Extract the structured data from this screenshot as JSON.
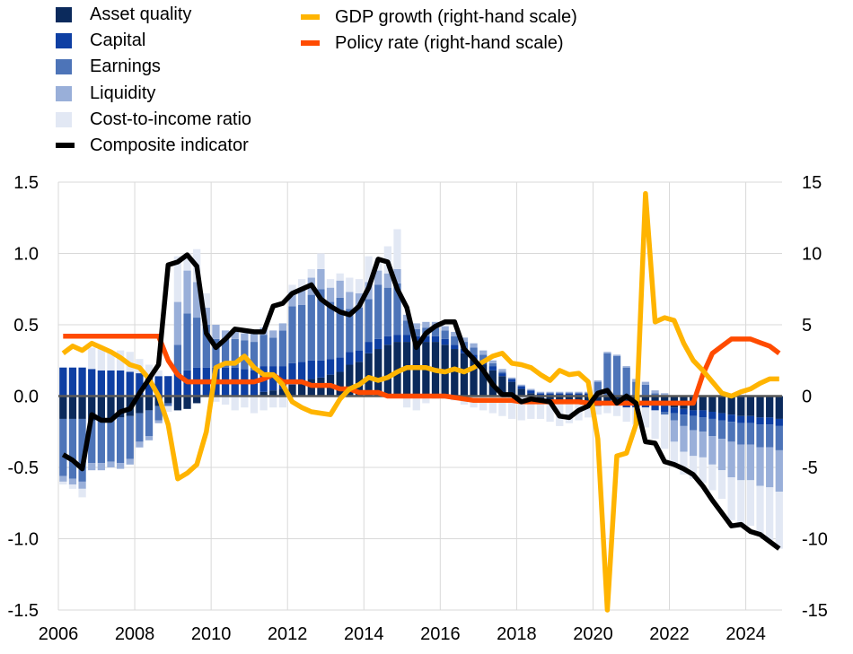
{
  "chart_data": {
    "type": "bar",
    "title": "",
    "x_ticks": [
      "2006",
      "2008",
      "2010",
      "2012",
      "2014",
      "2016",
      "2018",
      "2020",
      "2022",
      "2024"
    ],
    "left_axis": {
      "ylim": [
        -1.5,
        1.5
      ],
      "ticks": [
        "-1.5",
        "-1.0",
        "-0.5",
        "0.0",
        "0.5",
        "1.0",
        "1.5"
      ]
    },
    "right_axis": {
      "ylim": [
        -15,
        15
      ],
      "ticks": [
        "-15",
        "-10",
        "-5",
        "0",
        "5",
        "10",
        "15"
      ]
    },
    "grid": true,
    "legend_position": "top-left",
    "x": [
      2006.0,
      2006.25,
      2006.5,
      2006.75,
      2007.0,
      2007.25,
      2007.5,
      2007.75,
      2008.0,
      2008.25,
      2008.5,
      2008.75,
      2009.0,
      2009.25,
      2009.5,
      2009.75,
      2010.0,
      2010.25,
      2010.5,
      2010.75,
      2011.0,
      2011.25,
      2011.5,
      2011.75,
      2012.0,
      2012.25,
      2012.5,
      2012.75,
      2013.0,
      2013.25,
      2013.5,
      2013.75,
      2014.0,
      2014.25,
      2014.5,
      2014.75,
      2015.0,
      2015.25,
      2015.5,
      2015.75,
      2016.0,
      2016.25,
      2016.5,
      2016.75,
      2017.0,
      2017.25,
      2017.5,
      2017.75,
      2018.0,
      2018.25,
      2018.5,
      2018.75,
      2019.0,
      2019.25,
      2019.5,
      2019.75,
      2020.0,
      2020.25,
      2020.5,
      2020.75,
      2021.0,
      2021.25,
      2021.5,
      2021.75,
      2022.0,
      2022.25,
      2022.5,
      2022.75,
      2023.0,
      2023.25,
      2023.5,
      2023.75,
      2024.0,
      2024.25,
      2024.5,
      2024.75
    ],
    "stack_order": [
      "Asset quality",
      "Capital",
      "Earnings",
      "Liquidity",
      "Cost-to-income ratio"
    ],
    "series": [
      {
        "name": "Asset quality",
        "color": "#0b2a5c",
        "kind": "bar",
        "values": [
          -0.16,
          -0.16,
          -0.16,
          -0.17,
          -0.17,
          -0.16,
          -0.15,
          -0.14,
          -0.12,
          -0.1,
          -0.07,
          -0.05,
          -0.1,
          -0.09,
          -0.05,
          0.0,
          0.0,
          0.0,
          0.0,
          0.0,
          0.0,
          0.03,
          0.04,
          0.05,
          0.08,
          0.1,
          0.12,
          0.13,
          0.15,
          0.17,
          0.22,
          0.24,
          0.3,
          0.33,
          0.36,
          0.38,
          0.38,
          0.38,
          0.38,
          0.38,
          0.36,
          0.33,
          0.3,
          0.26,
          0.22,
          0.18,
          0.14,
          0.1,
          0.05,
          0.02,
          -0.02,
          -0.04,
          -0.05,
          -0.05,
          -0.05,
          -0.05,
          -0.05,
          -0.04,
          -0.04,
          -0.05,
          -0.05,
          -0.05,
          -0.06,
          -0.07,
          -0.08,
          -0.09,
          -0.1,
          -0.1,
          -0.11,
          -0.12,
          -0.13,
          -0.14,
          -0.14,
          -0.15,
          -0.15,
          -0.16
        ]
      },
      {
        "name": "Capital",
        "color": "#0e3fa3",
        "kind": "bar",
        "values": [
          0.2,
          0.2,
          0.2,
          0.19,
          0.18,
          0.18,
          0.18,
          0.17,
          0.16,
          0.15,
          0.14,
          0.14,
          0.16,
          0.18,
          0.2,
          0.2,
          0.2,
          0.2,
          0.2,
          0.19,
          0.18,
          0.18,
          0.17,
          0.16,
          0.15,
          0.14,
          0.13,
          0.12,
          0.11,
          0.1,
          0.09,
          0.08,
          0.08,
          0.07,
          0.06,
          0.05,
          0.05,
          0.04,
          0.04,
          0.04,
          0.04,
          0.03,
          0.03,
          0.03,
          0.03,
          0.03,
          0.02,
          0.02,
          0.02,
          0.02,
          0.02,
          0.02,
          0.02,
          0.02,
          0.02,
          0.02,
          -0.02,
          -0.02,
          -0.02,
          -0.03,
          -0.03,
          -0.03,
          -0.04,
          -0.04,
          -0.04,
          -0.04,
          -0.04,
          -0.05,
          -0.05,
          -0.05,
          -0.05,
          -0.05,
          -0.05,
          -0.05,
          -0.05,
          -0.05
        ]
      },
      {
        "name": "Earnings",
        "color": "#4d74b8",
        "kind": "bar",
        "values": [
          -0.4,
          -0.42,
          -0.44,
          -0.3,
          -0.3,
          -0.3,
          -0.32,
          -0.3,
          -0.2,
          -0.18,
          -0.1,
          -0.02,
          0.2,
          0.4,
          0.35,
          0.3,
          0.2,
          0.2,
          0.2,
          0.2,
          0.2,
          0.22,
          0.2,
          0.25,
          0.4,
          0.4,
          0.46,
          0.5,
          0.4,
          0.42,
          0.3,
          0.3,
          0.3,
          0.38,
          0.34,
          0.36,
          0.1,
          0.05,
          0.06,
          0.06,
          0.06,
          0.06,
          0.05,
          0.05,
          0.04,
          0.02,
          0.01,
          0.0,
          0.0,
          0.0,
          0.0,
          0.0,
          0.0,
          0.0,
          0.0,
          0.0,
          0.1,
          0.3,
          0.28,
          0.2,
          0.1,
          0.08,
          0.02,
          -0.02,
          -0.05,
          -0.08,
          -0.1,
          -0.1,
          -0.12,
          -0.13,
          -0.14,
          -0.15,
          -0.15,
          -0.16,
          -0.16,
          -0.17
        ]
      },
      {
        "name": "Liquidity",
        "color": "#99afd9",
        "kind": "bar",
        "values": [
          -0.04,
          -0.04,
          -0.05,
          -0.05,
          -0.05,
          -0.04,
          -0.04,
          -0.04,
          -0.04,
          -0.03,
          -0.02,
          0.0,
          0.3,
          0.3,
          0.25,
          0.12,
          0.1,
          0.06,
          0.06,
          0.05,
          0.06,
          0.05,
          0.05,
          0.05,
          0.1,
          0.12,
          0.12,
          0.14,
          0.1,
          0.12,
          0.12,
          0.1,
          0.12,
          0.1,
          0.1,
          0.1,
          0.04,
          0.04,
          0.04,
          0.04,
          0.03,
          0.03,
          0.03,
          0.03,
          0.03,
          0.02,
          0.02,
          0.01,
          0.01,
          0.01,
          0.01,
          0.01,
          0.01,
          0.01,
          0.01,
          0.01,
          0.01,
          0.01,
          0.01,
          0.01,
          0.02,
          0.02,
          0.02,
          0.02,
          -0.15,
          -0.18,
          -0.18,
          -0.18,
          -0.2,
          -0.22,
          -0.25,
          -0.25,
          -0.25,
          -0.27,
          -0.28,
          -0.29
        ]
      },
      {
        "name": "Cost-to-income ratio",
        "color": "#e2e8f4",
        "kind": "bar",
        "values": [
          -0.02,
          -0.03,
          -0.06,
          0.15,
          0.15,
          0.13,
          0.14,
          0.14,
          0.1,
          0.07,
          0.04,
          -0.04,
          0.32,
          0.12,
          0.23,
          0.1,
          -0.04,
          -0.06,
          -0.1,
          -0.08,
          -0.12,
          -0.1,
          -0.08,
          -0.08,
          0.05,
          0.06,
          0.06,
          0.11,
          0.06,
          0.05,
          0.1,
          0.1,
          0.18,
          0.09,
          0.19,
          0.28,
          -0.08,
          -0.1,
          -0.05,
          -0.02,
          -0.02,
          -0.03,
          -0.06,
          -0.08,
          -0.1,
          -0.12,
          -0.14,
          -0.16,
          -0.17,
          -0.16,
          -0.14,
          -0.14,
          -0.16,
          -0.14,
          -0.12,
          -0.1,
          -0.06,
          -0.06,
          -0.08,
          -0.1,
          -0.12,
          -0.14,
          -0.2,
          -0.24,
          -0.15,
          -0.16,
          -0.16,
          -0.18,
          -0.18,
          -0.2,
          -0.3,
          -0.32,
          -0.32,
          -0.35,
          -0.37,
          -0.4
        ]
      },
      {
        "name": "Composite indicator",
        "color": "#000000",
        "kind": "line",
        "axis": "left",
        "values": [
          -0.41,
          -0.45,
          -0.51,
          -0.13,
          -0.17,
          -0.17,
          -0.11,
          -0.09,
          0.02,
          0.12,
          0.22,
          0.92,
          0.94,
          0.99,
          0.91,
          0.44,
          0.34,
          0.4,
          0.47,
          0.46,
          0.45,
          0.45,
          0.63,
          0.65,
          0.72,
          0.75,
          0.78,
          0.68,
          0.63,
          0.59,
          0.57,
          0.63,
          0.76,
          0.96,
          0.94,
          0.75,
          0.62,
          0.34,
          0.44,
          0.49,
          0.52,
          0.52,
          0.33,
          0.26,
          0.18,
          0.08,
          0.01,
          0.01,
          -0.04,
          -0.02,
          -0.03,
          -0.04,
          -0.14,
          -0.15,
          -0.1,
          -0.07,
          0.02,
          0.04,
          -0.05,
          0.0,
          -0.05,
          -0.32,
          -0.33,
          -0.46,
          -0.48,
          -0.51,
          -0.55,
          -0.63,
          -0.73,
          -0.82,
          -0.91,
          -0.9,
          -0.95,
          -0.97,
          -1.02,
          -1.07
        ]
      },
      {
        "name": "GDP growth (right-hand scale)",
        "color": "#ffb400",
        "kind": "line",
        "axis": "right",
        "values": [
          3.0,
          3.5,
          3.2,
          3.7,
          3.4,
          3.1,
          2.7,
          2.2,
          2.0,
          1.2,
          0.0,
          -2.0,
          -5.8,
          -5.4,
          -4.8,
          -2.5,
          2.0,
          2.3,
          2.3,
          2.8,
          2.0,
          1.5,
          1.5,
          0.8,
          -0.4,
          -0.8,
          -1.1,
          -1.2,
          -1.3,
          -0.2,
          0.5,
          0.8,
          1.3,
          1.1,
          1.3,
          1.7,
          2.0,
          2.0,
          2.0,
          1.8,
          1.7,
          1.9,
          1.7,
          2.0,
          2.4,
          2.8,
          3.0,
          2.3,
          2.2,
          2.0,
          1.5,
          1.1,
          1.8,
          1.5,
          1.6,
          1.0,
          -3.0,
          -15.0,
          -4.2,
          -4.0,
          -2.0,
          14.2,
          5.2,
          5.5,
          5.3,
          3.7,
          2.5,
          1.8,
          1.0,
          0.2,
          0.0,
          0.3,
          0.5,
          0.9,
          1.2,
          1.2
        ]
      },
      {
        "name": "Policy rate (right-hand scale)",
        "color": "#ff4b00",
        "kind": "line",
        "axis": "right",
        "values": [
          4.2,
          4.2,
          4.2,
          4.2,
          4.2,
          4.2,
          4.2,
          4.2,
          4.2,
          4.2,
          4.2,
          2.5,
          1.5,
          1.0,
          1.0,
          1.0,
          1.0,
          1.0,
          1.0,
          1.0,
          1.0,
          1.2,
          1.5,
          1.0,
          1.0,
          1.0,
          0.75,
          0.75,
          0.75,
          0.5,
          0.5,
          0.25,
          0.25,
          0.25,
          0.0,
          0.0,
          0.0,
          0.0,
          0.0,
          0.0,
          0.0,
          -0.1,
          -0.2,
          -0.3,
          -0.3,
          -0.3,
          -0.3,
          -0.3,
          -0.4,
          -0.4,
          -0.4,
          -0.4,
          -0.4,
          -0.4,
          -0.4,
          -0.5,
          -0.5,
          -0.5,
          -0.5,
          -0.5,
          -0.5,
          -0.5,
          -0.5,
          -0.5,
          -0.5,
          -0.5,
          -0.5,
          1.5,
          3.0,
          3.5,
          4.0,
          4.0,
          4.0,
          3.75,
          3.5,
          3.0
        ]
      }
    ]
  }
}
